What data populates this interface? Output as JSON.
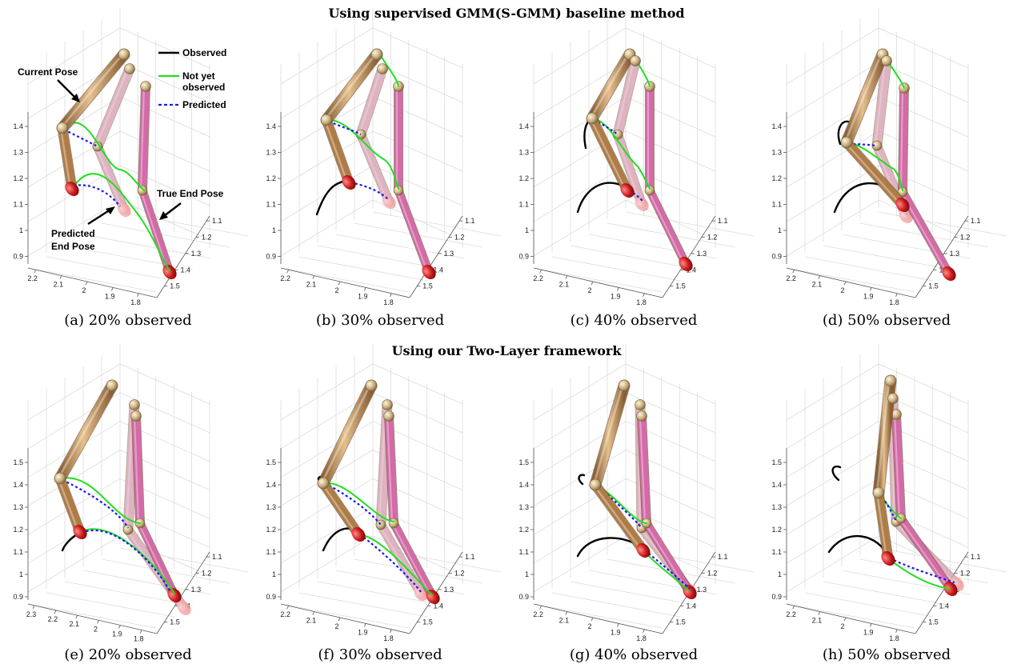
{
  "row_titles": [
    "Using supervised GMM(S-GMM) baseline method",
    "Using our Two-Layer framework"
  ],
  "captions": [
    "(a) 20% observed",
    "(b) 30% observed",
    "(c) 40% observed",
    "(d) 50% observed",
    "(e) 20% observed",
    "(f) 30% observed",
    "(g) 40% observed",
    "(h) 50% observed"
  ],
  "legend": {
    "observed": "Observed",
    "not_yet_line1": "Not yet",
    "not_yet_line2": "observed",
    "predicted": "Predicted"
  },
  "annotations": {
    "current_pose": "Current Pose",
    "true_end_pose": "True End Pose",
    "predicted_end_line1": "Predicted",
    "predicted_end_line2": "End Pose"
  },
  "axes": {
    "top_z_ticks": [
      "1.4",
      "1.3",
      "1.2",
      "1.1",
      "1",
      "0.9"
    ],
    "bottom_z_ticks": [
      "1.5",
      "1.4",
      "1.3",
      "1.2",
      "1.1",
      "1",
      "0.9"
    ],
    "x_ticks": [
      "2.2",
      "2.1",
      "2",
      "1.9",
      "1.8"
    ],
    "x_ticks_e": [
      "2.3",
      "2.2",
      "2.1",
      "2",
      "1.9",
      "1.8"
    ],
    "y_ticks": [
      "1.1",
      "1.2",
      "1.3",
      "1.4",
      "1.5"
    ]
  },
  "colors": {
    "observed": "#000000",
    "not_yet_observed": "#22dd22",
    "predicted": "#1a1aee",
    "arm_current": "#c8955a",
    "arm_true_end": "#d46aa8",
    "arm_predicted_end": "#f0b6cf",
    "hand": "#d42020"
  }
}
